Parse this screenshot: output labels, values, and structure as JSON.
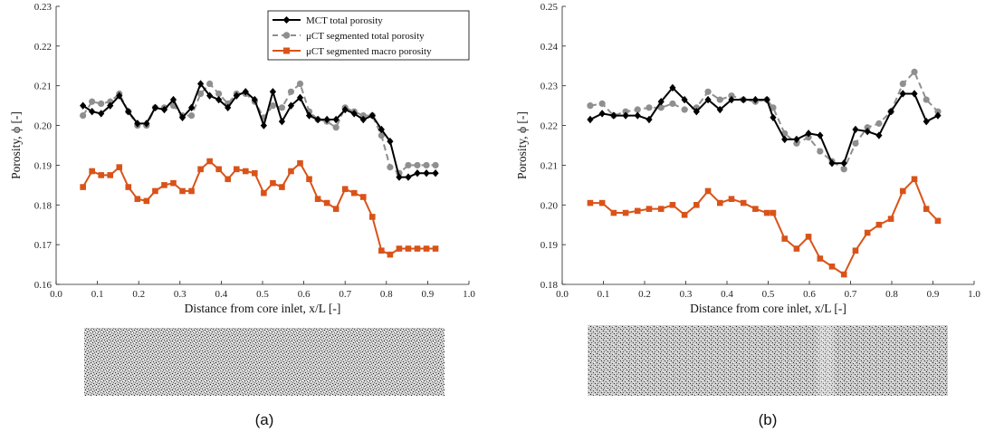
{
  "chart_data": [
    {
      "type": "line",
      "panel_label": "(a)",
      "xlabel": "Distance from core inlet, x/L [-]",
      "ylabel": "Porosity, ϕ [-]",
      "xlim": [
        0,
        1
      ],
      "ylim": [
        0.16,
        0.23
      ],
      "xticks": [
        0,
        0.1,
        0.2,
        0.3,
        0.4,
        0.5,
        0.6,
        0.7,
        0.8,
        0.9,
        1.0
      ],
      "yticks": [
        0.16,
        0.17,
        0.18,
        0.19,
        0.2,
        0.21,
        0.22,
        0.23
      ],
      "xtick_labels": [
        "0.0",
        "0.1",
        "0.2",
        "0.3",
        "0.4",
        "0.5",
        "0.6",
        "0.7",
        "0.8",
        "0.9",
        "1.0"
      ],
      "ytick_labels": [
        "0.16",
        "0.17",
        "0.18",
        "0.19",
        "0.20",
        "0.21",
        "0.22",
        "0.23"
      ],
      "grid": false,
      "legend_position": "top-right",
      "x": [
        0.065,
        0.087,
        0.109,
        0.131,
        0.153,
        0.175,
        0.197,
        0.219,
        0.24,
        0.262,
        0.284,
        0.306,
        0.328,
        0.35,
        0.372,
        0.394,
        0.416,
        0.437,
        0.459,
        0.481,
        0.503,
        0.525,
        0.547,
        0.569,
        0.591,
        0.613,
        0.634,
        0.656,
        0.678,
        0.7,
        0.722,
        0.744,
        0.766,
        0.788,
        0.809,
        0.831,
        0.853,
        0.875,
        0.897,
        0.919
      ],
      "series": [
        {
          "name": "MCT total porosity",
          "color": "#000000",
          "marker": "diamond",
          "line": "solid",
          "values": [
            0.205,
            0.2035,
            0.203,
            0.205,
            0.2075,
            0.2035,
            0.2005,
            0.2005,
            0.2045,
            0.204,
            0.2065,
            0.202,
            0.2045,
            0.2105,
            0.2075,
            0.2065,
            0.2045,
            0.2075,
            0.2085,
            0.2065,
            0.2,
            0.2085,
            0.201,
            0.205,
            0.207,
            0.2025,
            0.2015,
            0.2015,
            0.2015,
            0.204,
            0.203,
            0.2015,
            0.2025,
            0.199,
            0.196,
            0.187,
            0.187,
            0.188,
            0.188,
            0.188
          ]
        },
        {
          "name": "μCT segmented total porosity",
          "color": "#8f8f8f",
          "marker": "circle",
          "line": "dashed",
          "values": [
            0.2025,
            0.206,
            0.2055,
            0.206,
            0.208,
            0.2035,
            0.2,
            0.2,
            0.2045,
            0.2045,
            0.205,
            0.2025,
            0.2025,
            0.208,
            0.2105,
            0.208,
            0.2055,
            0.208,
            0.208,
            0.206,
            0.202,
            0.205,
            0.2045,
            0.2085,
            0.2105,
            0.2035,
            0.2015,
            0.201,
            0.1995,
            0.2045,
            0.2035,
            0.2025,
            0.2025,
            0.1975,
            0.1895,
            0.188,
            0.19,
            0.19,
            0.19,
            0.19
          ]
        },
        {
          "name": "μCT segmented macro porosity",
          "color": "#d95319",
          "marker": "square",
          "line": "solid",
          "values": [
            0.1845,
            0.1885,
            0.1875,
            0.1875,
            0.1895,
            0.1845,
            0.1815,
            0.181,
            0.1835,
            0.185,
            0.1855,
            0.1835,
            0.1835,
            0.189,
            0.191,
            0.189,
            0.1865,
            0.189,
            0.1885,
            0.188,
            0.183,
            0.1855,
            0.1845,
            0.1885,
            0.1905,
            0.1865,
            0.1815,
            0.1805,
            0.179,
            0.184,
            0.183,
            0.182,
            0.177,
            0.1685,
            0.1675,
            0.169,
            0.169,
            0.169,
            0.169,
            0.169
          ]
        }
      ]
    },
    {
      "type": "line",
      "panel_label": "(b)",
      "xlabel": "Distance from core inlet, x/L [-]",
      "ylabel": "Porosity, ϕ [-]",
      "xlim": [
        0,
        1
      ],
      "ylim": [
        0.18,
        0.25
      ],
      "xticks": [
        0,
        0.1,
        0.2,
        0.3,
        0.4,
        0.5,
        0.6,
        0.7,
        0.8,
        0.9,
        1.0
      ],
      "yticks": [
        0.18,
        0.19,
        0.2,
        0.21,
        0.22,
        0.23,
        0.24,
        0.25
      ],
      "xtick_labels": [
        "0.0",
        "0.1",
        "0.2",
        "0.3",
        "0.4",
        "0.5",
        "0.6",
        "0.7",
        "0.8",
        "0.9",
        "1.0"
      ],
      "ytick_labels": [
        "0.18",
        "0.19",
        "0.20",
        "0.21",
        "0.22",
        "0.23",
        "0.24",
        "0.25"
      ],
      "grid": false,
      "legend_position": "none",
      "x": [
        0.068,
        0.097,
        0.125,
        0.154,
        0.183,
        0.211,
        0.24,
        0.268,
        0.297,
        0.326,
        0.354,
        0.383,
        0.411,
        0.44,
        0.469,
        0.497,
        0.512,
        0.54,
        0.569,
        0.598,
        0.626,
        0.655,
        0.684,
        0.712,
        0.741,
        0.769,
        0.798,
        0.827,
        0.855,
        0.884,
        0.912
      ],
      "series": [
        {
          "name": "MCT total porosity",
          "color": "#000000",
          "marker": "diamond",
          "line": "solid",
          "values": [
            0.2215,
            0.223,
            0.2225,
            0.2225,
            0.2225,
            0.2215,
            0.226,
            0.2295,
            0.2265,
            0.2235,
            0.2265,
            0.224,
            0.2265,
            0.2265,
            0.2265,
            0.2265,
            0.222,
            0.2165,
            0.2165,
            0.218,
            0.2175,
            0.2105,
            0.2105,
            0.219,
            0.2185,
            0.2175,
            0.2235,
            0.228,
            0.228,
            0.221,
            0.2225
          ]
        },
        {
          "name": "μCT segmented total porosity",
          "color": "#8f8f8f",
          "marker": "circle",
          "line": "dashed",
          "values": [
            0.225,
            0.2255,
            0.2225,
            0.2235,
            0.224,
            0.2245,
            0.2245,
            0.2255,
            0.224,
            0.2245,
            0.2285,
            0.2265,
            0.2275,
            0.2265,
            0.226,
            0.2265,
            0.2245,
            0.218,
            0.2155,
            0.217,
            0.2135,
            0.211,
            0.209,
            0.2155,
            0.2195,
            0.2205,
            0.2235,
            0.2305,
            0.2335,
            0.2265,
            0.2235
          ]
        },
        {
          "name": "μCT segmented macro porosity",
          "color": "#d95319",
          "marker": "square",
          "line": "solid",
          "values": [
            0.2005,
            0.2005,
            0.198,
            0.198,
            0.1985,
            0.199,
            0.199,
            0.2,
            0.1975,
            0.2,
            0.2035,
            0.2005,
            0.2015,
            0.2005,
            0.199,
            0.198,
            0.198,
            0.1915,
            0.189,
            0.192,
            0.1865,
            0.1845,
            0.1825,
            0.1885,
            0.193,
            0.195,
            0.1965,
            0.2035,
            0.2065,
            0.199,
            0.196
          ]
        }
      ]
    }
  ]
}
